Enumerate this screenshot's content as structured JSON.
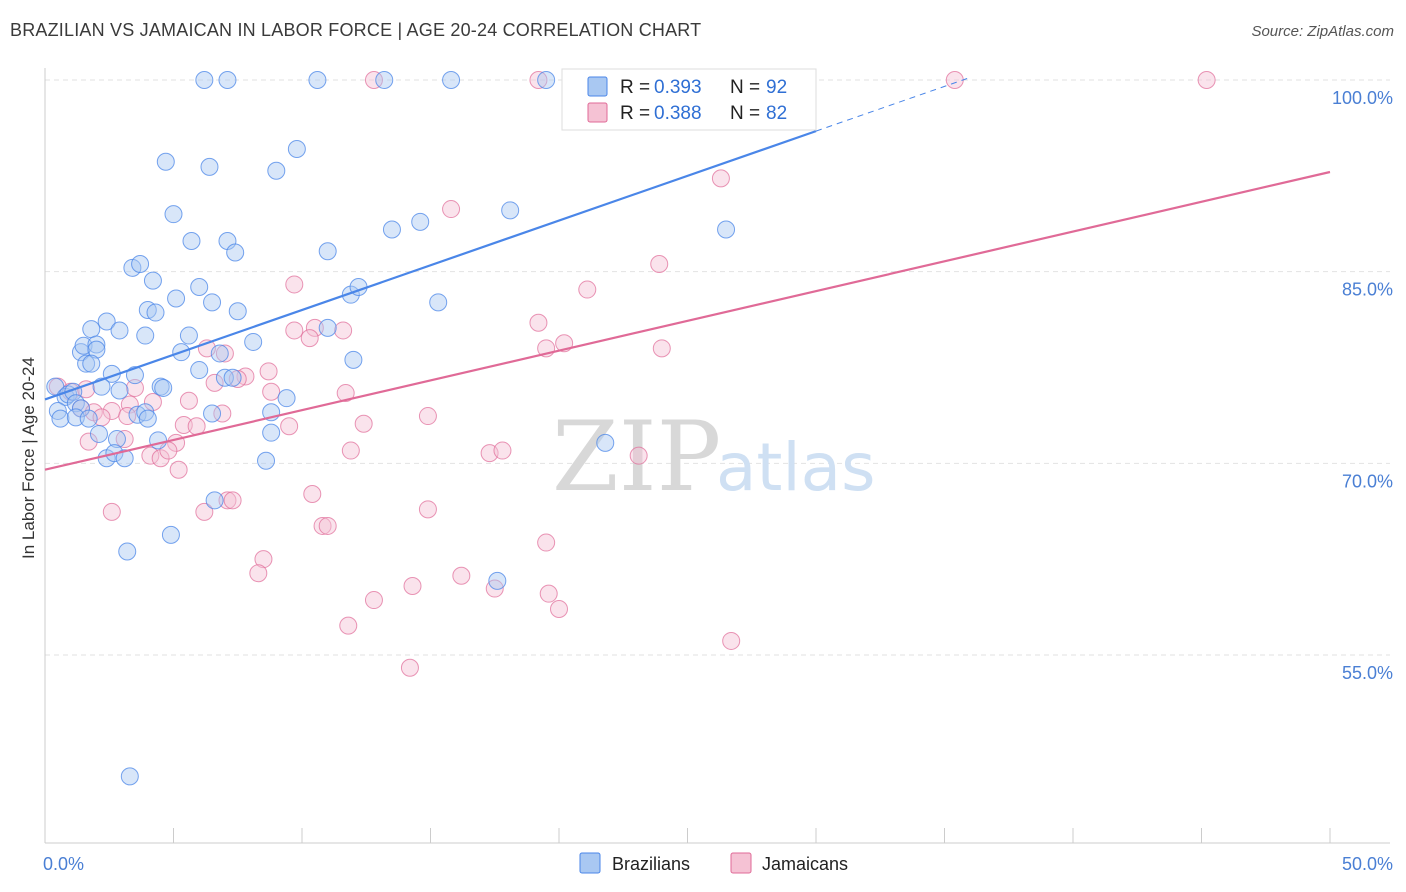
{
  "title": "BRAZILIAN VS JAMAICAN IN LABOR FORCE | AGE 20-24 CORRELATION CHART",
  "source": "Source: ZipAtlas.com",
  "watermark": {
    "zip": "ZIP",
    "atlas": "atlas"
  },
  "colors": {
    "blue": "#4a86e8",
    "blue_fill": "#a9c8f2",
    "pink": "#e06a97",
    "pink_fill": "#f5c2d4",
    "axis_label": "#4a7fd4",
    "grid": "#e2e2e2"
  },
  "legend": {
    "r_label": "R =",
    "n_label": "N =",
    "brazilians": {
      "r": "0.393",
      "n": "92"
    },
    "jamaicans": {
      "r": "0.388",
      "n": "82"
    }
  },
  "bottom_legend": [
    "Brazilians",
    "Jamaicans"
  ],
  "chart_data": {
    "type": "scatter",
    "title": "BRAZILIAN VS JAMAICAN IN LABOR FORCE | AGE 20-24 CORRELATION CHART",
    "xlabel": "",
    "ylabel": "In Labor Force | Age 20-24",
    "xlim": [
      0,
      50
    ],
    "ylim": [
      40,
      103
    ],
    "x_tick_labels": [
      "0.0%",
      "50.0%"
    ],
    "y_ticks": [
      55,
      70,
      85,
      100
    ],
    "y_tick_labels": [
      "55.0%",
      "70.0%",
      "85.0%",
      "100.0%"
    ],
    "grid": true,
    "legend_position": "top-center",
    "series": [
      {
        "name": "Brazilians",
        "color": "#4a86e8",
        "trend": {
          "x0": 0,
          "y0": 75.0,
          "x1": 30,
          "y1": 96.0,
          "dashed_to_x": 36
        },
        "points": [
          [
            6.2,
            100
          ],
          [
            7.1,
            100
          ],
          [
            10.6,
            100
          ],
          [
            13.2,
            100
          ],
          [
            15.8,
            100
          ],
          [
            19.5,
            100
          ],
          [
            4.7,
            93.6
          ],
          [
            6.4,
            93.2
          ],
          [
            9.0,
            92.9
          ],
          [
            9.8,
            94.6
          ],
          [
            5.0,
            89.5
          ],
          [
            5.7,
            87.4
          ],
          [
            7.1,
            87.4
          ],
          [
            7.4,
            86.5
          ],
          [
            11.0,
            86.6
          ],
          [
            13.5,
            88.3
          ],
          [
            14.6,
            88.9
          ],
          [
            18.1,
            89.8
          ],
          [
            26.5,
            88.3
          ],
          [
            3.4,
            85.3
          ],
          [
            3.7,
            85.6
          ],
          [
            4.2,
            84.3
          ],
          [
            5.1,
            82.9
          ],
          [
            4.0,
            82.0
          ],
          [
            4.3,
            81.8
          ],
          [
            6.0,
            83.8
          ],
          [
            6.5,
            82.6
          ],
          [
            7.5,
            81.9
          ],
          [
            11.9,
            83.2
          ],
          [
            12.2,
            83.8
          ],
          [
            15.3,
            82.6
          ],
          [
            1.8,
            80.5
          ],
          [
            2.4,
            81.1
          ],
          [
            2.9,
            80.4
          ],
          [
            3.9,
            80.0
          ],
          [
            5.6,
            80.0
          ],
          [
            8.1,
            79.5
          ],
          [
            11.0,
            80.6
          ],
          [
            1.4,
            78.7
          ],
          [
            1.5,
            79.2
          ],
          [
            2.0,
            79.3
          ],
          [
            2.0,
            78.9
          ],
          [
            1.6,
            77.8
          ],
          [
            1.8,
            77.8
          ],
          [
            2.6,
            77.0
          ],
          [
            3.5,
            76.9
          ],
          [
            5.3,
            78.7
          ],
          [
            6.8,
            78.6
          ],
          [
            6.0,
            77.3
          ],
          [
            7.0,
            76.7
          ],
          [
            7.3,
            76.7
          ],
          [
            12.0,
            78.1
          ],
          [
            0.4,
            76.0
          ],
          [
            0.8,
            75.2
          ],
          [
            0.9,
            75.4
          ],
          [
            1.1,
            75.6
          ],
          [
            0.5,
            74.1
          ],
          [
            1.2,
            74.7
          ],
          [
            1.4,
            74.3
          ],
          [
            0.6,
            73.5
          ],
          [
            1.2,
            73.6
          ],
          [
            1.7,
            73.5
          ],
          [
            2.2,
            76.0
          ],
          [
            2.9,
            75.7
          ],
          [
            4.5,
            76.0
          ],
          [
            4.6,
            75.9
          ],
          [
            3.6,
            73.8
          ],
          [
            3.9,
            74.0
          ],
          [
            4.0,
            73.5
          ],
          [
            6.5,
            73.9
          ],
          [
            8.8,
            74.0
          ],
          [
            9.4,
            75.1
          ],
          [
            2.1,
            72.3
          ],
          [
            2.8,
            71.9
          ],
          [
            4.4,
            71.8
          ],
          [
            8.8,
            72.4
          ],
          [
            2.4,
            70.4
          ],
          [
            2.7,
            70.8
          ],
          [
            3.1,
            70.4
          ],
          [
            8.6,
            70.2
          ],
          [
            21.8,
            71.6
          ],
          [
            6.6,
            67.1
          ],
          [
            4.9,
            64.4
          ],
          [
            3.2,
            63.1
          ],
          [
            17.6,
            60.8
          ],
          [
            3.3,
            45.5
          ]
        ]
      },
      {
        "name": "Jamaicans",
        "color": "#e06a97",
        "trend": {
          "x0": 0,
          "y0": 69.5,
          "x1": 50,
          "y1": 92.8
        },
        "points": [
          [
            12.8,
            100
          ],
          [
            19.2,
            100
          ],
          [
            27.5,
            100
          ],
          [
            35.4,
            100
          ],
          [
            45.2,
            100
          ],
          [
            26.3,
            92.3
          ],
          [
            15.8,
            89.9
          ],
          [
            23.9,
            85.6
          ],
          [
            21.1,
            83.6
          ],
          [
            9.7,
            84.0
          ],
          [
            9.7,
            80.4
          ],
          [
            10.5,
            80.6
          ],
          [
            11.6,
            80.4
          ],
          [
            10.3,
            79.8
          ],
          [
            19.2,
            81.0
          ],
          [
            19.5,
            79.0
          ],
          [
            20.2,
            79.4
          ],
          [
            24.0,
            79.0
          ],
          [
            6.3,
            79.0
          ],
          [
            7.0,
            78.6
          ],
          [
            8.7,
            77.2
          ],
          [
            7.8,
            76.8
          ],
          [
            7.5,
            76.6
          ],
          [
            6.6,
            76.3
          ],
          [
            8.8,
            75.6
          ],
          [
            11.7,
            75.5
          ],
          [
            0.5,
            76.0
          ],
          [
            1.0,
            75.6
          ],
          [
            1.6,
            75.8
          ],
          [
            3.5,
            75.9
          ],
          [
            4.2,
            74.8
          ],
          [
            5.6,
            74.9
          ],
          [
            3.3,
            74.6
          ],
          [
            1.4,
            74.3
          ],
          [
            1.9,
            74.0
          ],
          [
            2.6,
            74.1
          ],
          [
            2.2,
            73.6
          ],
          [
            3.2,
            73.7
          ],
          [
            6.9,
            73.9
          ],
          [
            14.9,
            73.7
          ],
          [
            5.4,
            73.0
          ],
          [
            5.9,
            72.9
          ],
          [
            9.5,
            72.9
          ],
          [
            12.4,
            73.1
          ],
          [
            1.7,
            71.7
          ],
          [
            3.1,
            71.9
          ],
          [
            5.1,
            71.6
          ],
          [
            4.1,
            70.6
          ],
          [
            4.5,
            70.4
          ],
          [
            4.8,
            71.0
          ],
          [
            11.9,
            71.0
          ],
          [
            17.3,
            70.8
          ],
          [
            17.8,
            71.0
          ],
          [
            23.1,
            70.6
          ],
          [
            5.2,
            69.5
          ],
          [
            10.4,
            67.6
          ],
          [
            7.1,
            67.1
          ],
          [
            7.3,
            67.1
          ],
          [
            2.6,
            66.2
          ],
          [
            6.2,
            66.2
          ],
          [
            14.9,
            66.4
          ],
          [
            10.8,
            65.1
          ],
          [
            11.0,
            65.1
          ],
          [
            19.5,
            63.8
          ],
          [
            8.5,
            62.5
          ],
          [
            8.3,
            61.4
          ],
          [
            16.2,
            61.2
          ],
          [
            14.3,
            60.4
          ],
          [
            17.5,
            60.2
          ],
          [
            12.8,
            59.3
          ],
          [
            19.6,
            59.8
          ],
          [
            20.0,
            58.6
          ],
          [
            11.8,
            57.3
          ],
          [
            26.7,
            56.1
          ],
          [
            14.2,
            54.0
          ]
        ]
      }
    ]
  }
}
